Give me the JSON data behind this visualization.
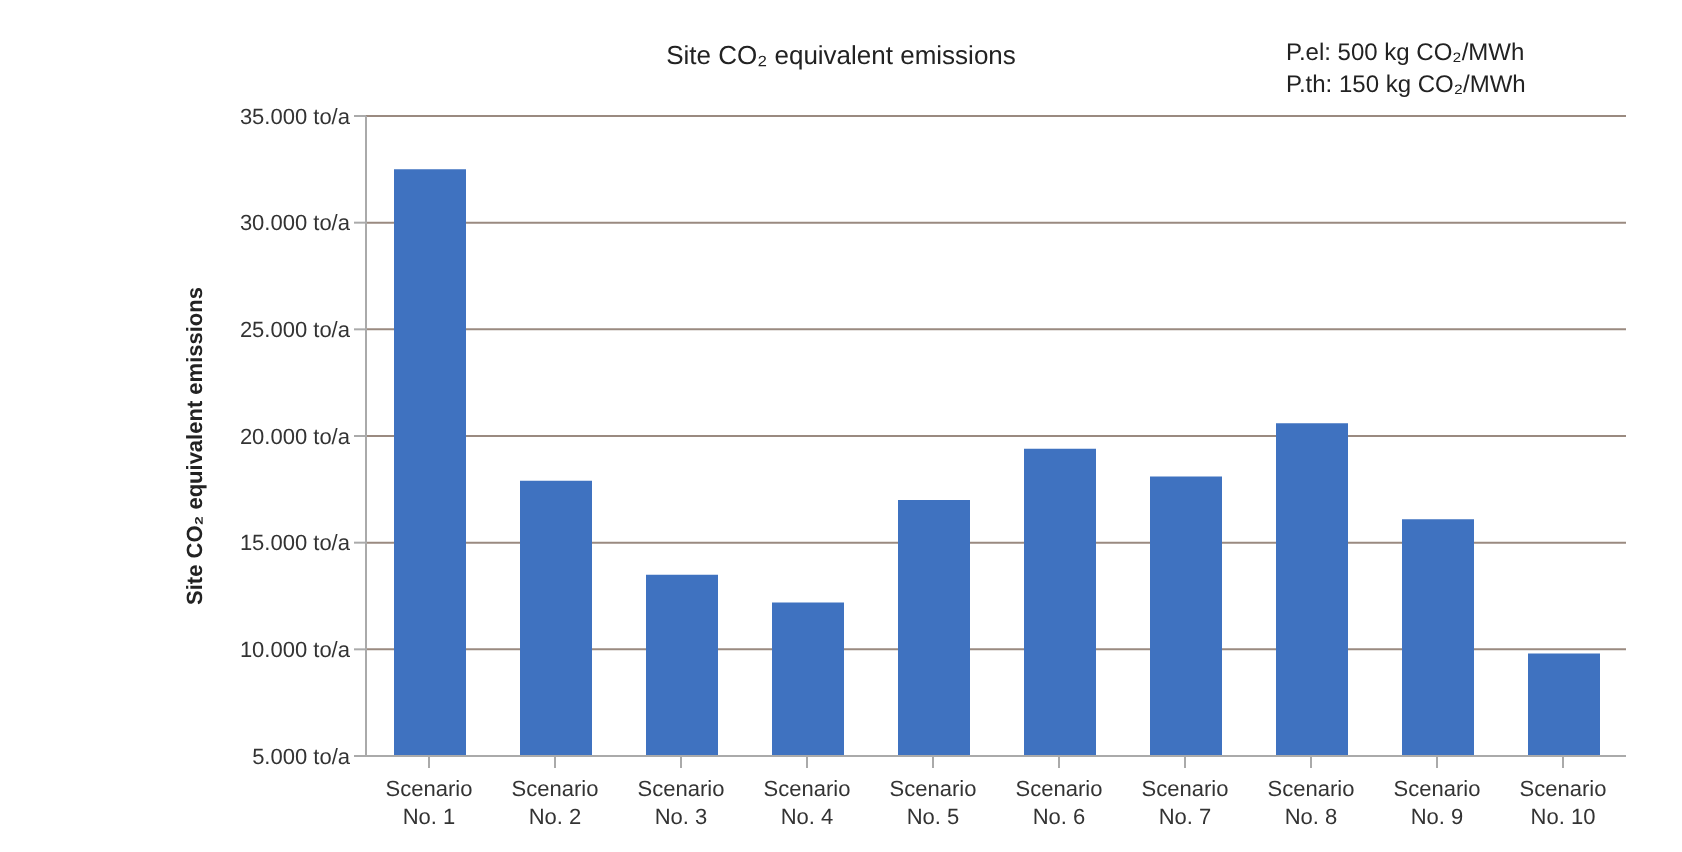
{
  "chart_data": {
    "type": "bar",
    "title": "Site CO₂ equivalent emissions",
    "ylabel": "Site CO₂ equivalent emissions",
    "annotations": [
      "P.el: 500 kg CO₂/MWh",
      "P.th: 150 kg CO₂/MWh"
    ],
    "categories": [
      "Scenario No. 1",
      "Scenario No. 2",
      "Scenario No. 3",
      "Scenario No. 4",
      "Scenario No. 5",
      "Scenario No. 6",
      "Scenario No. 7",
      "Scenario No. 8",
      "Scenario No. 9",
      "Scenario No. 10"
    ],
    "values": [
      32500,
      17900,
      13500,
      12200,
      17000,
      19400,
      18100,
      20600,
      16100,
      9800
    ],
    "color": "#3f72c0",
    "ylim": [
      5000,
      35000
    ],
    "yticks": [
      {
        "value": 5000,
        "label": "5.000 to/a"
      },
      {
        "value": 10000,
        "label": "10.000 to/a"
      },
      {
        "value": 15000,
        "label": "15.000 to/a"
      },
      {
        "value": 20000,
        "label": "20.000 to/a"
      },
      {
        "value": 25000,
        "label": "25.000 to/a"
      },
      {
        "value": 30000,
        "label": "30.000 to/a"
      },
      {
        "value": 35000,
        "label": "35.000 to/a"
      }
    ],
    "grid": "y"
  }
}
